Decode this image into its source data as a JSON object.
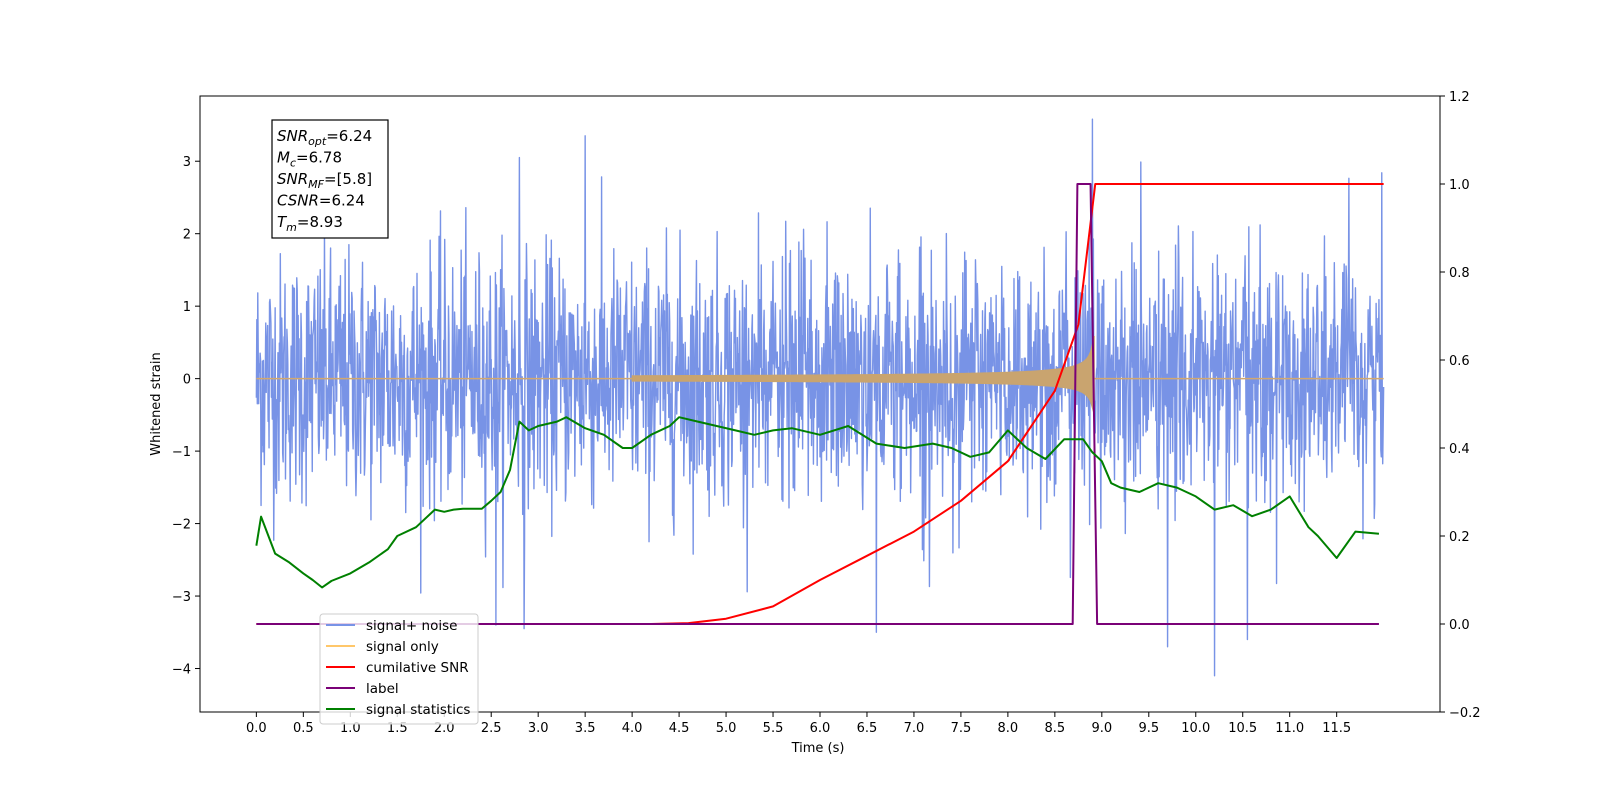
{
  "chart_data": {
    "type": "line",
    "xlabel": "Time (s)",
    "ylabel": "Whitened strain",
    "xlim": [
      -0.6,
      12.6
    ],
    "ylim": [
      -4.6,
      3.9
    ],
    "y2lim": [
      -0.2,
      1.2
    ],
    "x_ticks": [
      "0.0",
      "0.5",
      "1.0",
      "1.5",
      "2.0",
      "2.5",
      "3.0",
      "3.5",
      "4.0",
      "4.5",
      "5.0",
      "5.5",
      "6.0",
      "6.5",
      "7.0",
      "7.5",
      "8.0",
      "8.5",
      "9.0",
      "9.5",
      "10.0",
      "10.5",
      "11.0",
      "11.5"
    ],
    "y_ticks": [
      "3",
      "2",
      "1",
      "0",
      "−1",
      "−2",
      "−3",
      "−4"
    ],
    "y2_ticks": [
      "1.2",
      "1.0",
      "0.8",
      "0.6",
      "0.4",
      "0.2",
      "0.0",
      "−0.2"
    ],
    "grid": false,
    "legend_position": "lower-left",
    "annotation": {
      "lines": [
        {
          "sym": "SNR",
          "sub": "opt",
          "val": "=6.24"
        },
        {
          "sym": "M",
          "sub": "c",
          "val": "=6.78"
        },
        {
          "sym": "SNR",
          "sub": "MF",
          "val": "=[5.8]"
        },
        {
          "sym": "CSNR",
          "sub": "",
          "val": "=6.24"
        },
        {
          "sym": "T",
          "sub": "m",
          "val": "=8.93"
        }
      ]
    },
    "series": [
      {
        "name": "signal+ noise",
        "color": "#7893e6",
        "axis": "left",
        "kind": "noise",
        "noise_sigma": 0.85,
        "x_range": [
          0.0,
          12.0
        ],
        "samples": 2400,
        "peaks": [
          [
            8.9,
            3.58
          ],
          [
            3.5,
            3.35
          ],
          [
            2.8,
            3.05
          ],
          [
            10.2,
            -4.1
          ],
          [
            9.7,
            -3.7
          ],
          [
            10.55,
            -3.6
          ],
          [
            6.6,
            -3.5
          ],
          [
            2.85,
            -3.45
          ],
          [
            2.55,
            -3.4
          ]
        ]
      },
      {
        "name": "signal only",
        "color": "#ffc76a",
        "axis": "left",
        "kind": "chirp",
        "x_range": [
          0.0,
          12.0
        ],
        "merger_time": 8.93,
        "peak_amplitude": 0.65
      },
      {
        "name": "cumilative SNR",
        "color": "#ff0000",
        "axis": "right",
        "x": [
          0,
          4.2,
          4.6,
          5.0,
          5.5,
          6.0,
          6.5,
          7.0,
          7.5,
          8.0,
          8.5,
          8.75,
          8.93,
          9.0,
          12.0
        ],
        "y": [
          0.0,
          0.0,
          0.002,
          0.012,
          0.04,
          0.1,
          0.155,
          0.21,
          0.28,
          0.37,
          0.53,
          0.68,
          1.0,
          1.0,
          1.0
        ]
      },
      {
        "name": "label",
        "color": "#7a0177",
        "axis": "right",
        "x": [
          0,
          8.69,
          8.74,
          8.88,
          8.95,
          11.95
        ],
        "y": [
          0,
          0,
          1,
          1,
          0,
          0
        ]
      },
      {
        "name": "signal statistics",
        "color": "#008000",
        "axis": "right",
        "x": [
          0.0,
          0.05,
          0.2,
          0.35,
          0.5,
          0.6,
          0.7,
          0.8,
          1.0,
          1.2,
          1.4,
          1.5,
          1.7,
          1.9,
          2.0,
          2.1,
          2.2,
          2.4,
          2.5,
          2.6,
          2.7,
          2.8,
          2.9,
          3.0,
          3.2,
          3.3,
          3.5,
          3.7,
          3.9,
          4.0,
          4.2,
          4.4,
          4.5,
          4.7,
          4.9,
          5.1,
          5.3,
          5.5,
          5.7,
          6.0,
          6.3,
          6.6,
          6.9,
          7.2,
          7.4,
          7.6,
          7.8,
          8.0,
          8.2,
          8.4,
          8.6,
          8.8,
          8.9,
          9.0,
          9.1,
          9.2,
          9.4,
          9.6,
          9.8,
          10.0,
          10.2,
          10.4,
          10.6,
          10.8,
          11.0,
          11.2,
          11.3,
          11.5,
          11.7,
          11.95
        ],
        "y": [
          0.178,
          0.244,
          0.16,
          0.14,
          0.115,
          0.1,
          0.083,
          0.098,
          0.115,
          0.14,
          0.17,
          0.2,
          0.22,
          0.26,
          0.255,
          0.26,
          0.262,
          0.262,
          0.28,
          0.3,
          0.35,
          0.46,
          0.44,
          0.45,
          0.46,
          0.47,
          0.445,
          0.43,
          0.4,
          0.4,
          0.43,
          0.45,
          0.47,
          0.46,
          0.45,
          0.44,
          0.43,
          0.44,
          0.445,
          0.43,
          0.45,
          0.41,
          0.4,
          0.41,
          0.4,
          0.38,
          0.39,
          0.44,
          0.4,
          0.375,
          0.42,
          0.42,
          0.39,
          0.37,
          0.32,
          0.31,
          0.3,
          0.32,
          0.31,
          0.29,
          0.26,
          0.27,
          0.245,
          0.26,
          0.29,
          0.22,
          0.2,
          0.15,
          0.21,
          0.205
        ]
      }
    ]
  }
}
